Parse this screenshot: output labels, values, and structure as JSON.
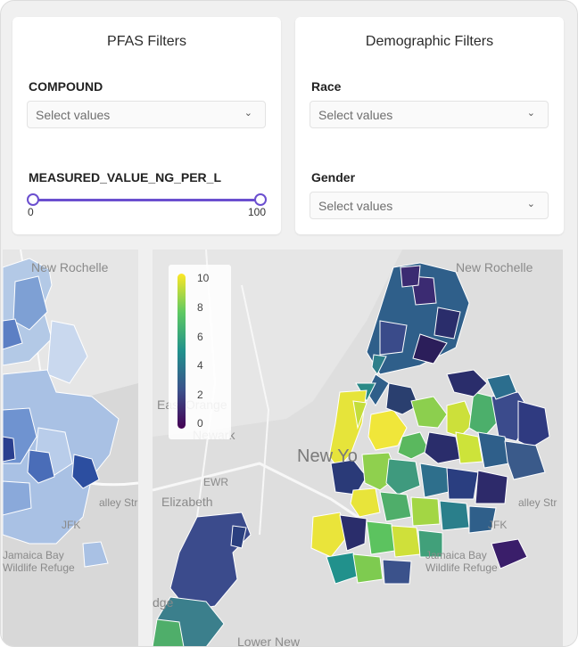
{
  "pfas_filters": {
    "title": "PFAS Filters",
    "compound": {
      "label": "COMPOUND",
      "placeholder": "Select values"
    },
    "measured": {
      "label": "MEASURED_VALUE_NG_PER_L",
      "min_label": "0",
      "max_label": "100",
      "range_selected": [
        0,
        100
      ]
    }
  },
  "demographic_filters": {
    "title": "Demographic Filters",
    "race": {
      "label": "Race",
      "placeholder": "Select values"
    },
    "gender": {
      "label": "Gender",
      "placeholder": "Select values"
    }
  },
  "map_left": {
    "places": {
      "new_rochelle": "New Rochelle",
      "jfk": "JFK",
      "jamaica_bay": "Jamaica Bay",
      "wildlife_refuge": "Wildlife Refuge",
      "valley_stream": "alley Str"
    }
  },
  "map_right": {
    "places": {
      "new_rochelle": "New Rochelle",
      "east_orange": "East Orange",
      "newark": "Newark",
      "new_york": "New Yo",
      "ewr": "EWR",
      "elizabeth": "Elizabeth",
      "valley_stream": "alley Str",
      "jfk": "JFK",
      "jamaica_bay": "Jamaica Bay",
      "wildlife_refuge": "Wildlife Refuge",
      "lower_new": "Lower New",
      "edge": "dge"
    },
    "legend": {
      "ticks": [
        "10",
        "8",
        "6",
        "4",
        "2",
        "0"
      ],
      "min": 0,
      "max": 10,
      "colors": [
        "#440154",
        "#3b528b",
        "#21918c",
        "#5ec962",
        "#fde725"
      ]
    }
  },
  "icons": {
    "dropdown": "chevron-down-icon"
  }
}
